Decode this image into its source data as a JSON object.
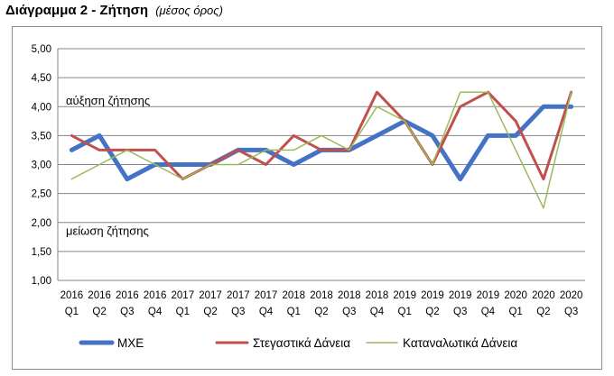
{
  "header": {
    "title": "Διάγραμμα 2 - Ζήτηση",
    "subtitle": "(μέσος όρος)"
  },
  "chart_data": {
    "type": "line",
    "title": "Διάγραμμα 2 - Ζήτηση",
    "subtitle": "(μέσος όρος)",
    "xlabel": "",
    "ylabel": "",
    "ylim": [
      1.0,
      5.0
    ],
    "yticks": [
      "1,00",
      "1,50",
      "2,00",
      "2,50",
      "3,00",
      "3,50",
      "4,00",
      "4,50",
      "5,00"
    ],
    "grid": "horizontal",
    "legend_position": "bottom",
    "categories": [
      {
        "year": "2016",
        "q": "Q1"
      },
      {
        "year": "2016",
        "q": "Q2"
      },
      {
        "year": "2016",
        "q": "Q3"
      },
      {
        "year": "2016",
        "q": "Q4"
      },
      {
        "year": "2017",
        "q": "Q1"
      },
      {
        "year": "2017",
        "q": "Q2"
      },
      {
        "year": "2017",
        "q": "Q3"
      },
      {
        "year": "2017",
        "q": "Q4"
      },
      {
        "year": "2018",
        "q": "Q1"
      },
      {
        "year": "2018",
        "q": "Q2"
      },
      {
        "year": "2018",
        "q": "Q3"
      },
      {
        "year": "2018",
        "q": "Q4"
      },
      {
        "year": "2019",
        "q": "Q1"
      },
      {
        "year": "2019",
        "q": "Q2"
      },
      {
        "year": "2019",
        "q": "Q3"
      },
      {
        "year": "2019",
        "q": "Q4"
      },
      {
        "year": "2020",
        "q": "Q1"
      },
      {
        "year": "2020",
        "q": "Q2"
      },
      {
        "year": "2020",
        "q": "Q3"
      }
    ],
    "annotations": [
      {
        "text": "αύξηση ζήτησης",
        "y": 4.1
      },
      {
        "text": "μείωση ζήτησης",
        "y": 1.85
      }
    ],
    "series": [
      {
        "name": "ΜΧΕ",
        "color": "#4472c4",
        "values": [
          3.25,
          3.5,
          2.75,
          3.0,
          3.0,
          3.0,
          3.25,
          3.25,
          3.0,
          3.25,
          3.25,
          3.5,
          3.75,
          3.5,
          2.75,
          3.5,
          3.5,
          4.0,
          4.0
        ]
      },
      {
        "name": "Στεγαστικά Δάνεια",
        "color": "#c0504d",
        "values": [
          3.5,
          3.25,
          3.25,
          3.25,
          2.75,
          3.0,
          3.25,
          3.0,
          3.5,
          3.25,
          3.25,
          4.25,
          3.75,
          3.0,
          4.0,
          4.25,
          3.75,
          2.75,
          4.25
        ]
      },
      {
        "name": "Καταναλωτικά Δάνεια",
        "color": "#9bbb59",
        "values": [
          2.75,
          3.0,
          3.25,
          3.0,
          2.75,
          3.0,
          3.0,
          3.25,
          3.25,
          3.5,
          3.25,
          4.0,
          3.75,
          3.0,
          4.25,
          4.25,
          3.25,
          2.25,
          4.25
        ]
      }
    ]
  }
}
